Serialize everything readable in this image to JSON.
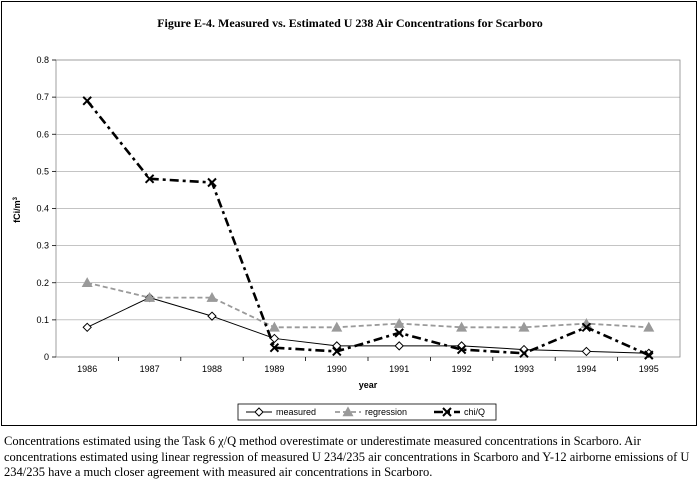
{
  "caption": "Concentrations estimated using the Task 6 χ/Q method overestimate or underestimate measured concentrations in Scarboro. Air concentrations estimated using linear regression of measured U 234/235 air concentrations in Scarboro and Y-12 airborne emissions of U 234/235 have a much closer agreement with measured air concentrations in Scarboro.",
  "chart_data": {
    "type": "line",
    "title": "Figure E-4. Measured vs. Estimated U 238 Air Concentrations for Scarboro",
    "xlabel": "year",
    "ylabel": "fCi/m³",
    "ylim": [
      0,
      0.8
    ],
    "yticks": [
      "0",
      "0.1",
      "0.2",
      "0.3",
      "0.4",
      "0.5",
      "0.6",
      "0.7",
      "0.8"
    ],
    "grid": true,
    "legend_position": "bottom",
    "categories": [
      "1986",
      "1987",
      "1988",
      "1989",
      "1990",
      "1991",
      "1992",
      "1993",
      "1994",
      "1995"
    ],
    "series": [
      {
        "name": "measured",
        "color": "#000000",
        "style": "solid",
        "marker": "diamond-open",
        "values": [
          0.08,
          0.16,
          0.11,
          0.05,
          0.03,
          0.03,
          0.03,
          0.02,
          0.015,
          0.01
        ]
      },
      {
        "name": "regression",
        "color": "#9a9a9a",
        "style": "dashed",
        "marker": "triangle",
        "values": [
          0.2,
          0.16,
          0.16,
          0.08,
          0.08,
          0.09,
          0.08,
          0.08,
          0.09,
          0.08
        ]
      },
      {
        "name": "chi/Q",
        "color": "#000000",
        "style": "dashdot",
        "marker": "x",
        "values": [
          0.69,
          0.48,
          0.47,
          0.025,
          0.015,
          0.065,
          0.02,
          0.01,
          0.08,
          0.005
        ]
      }
    ]
  }
}
